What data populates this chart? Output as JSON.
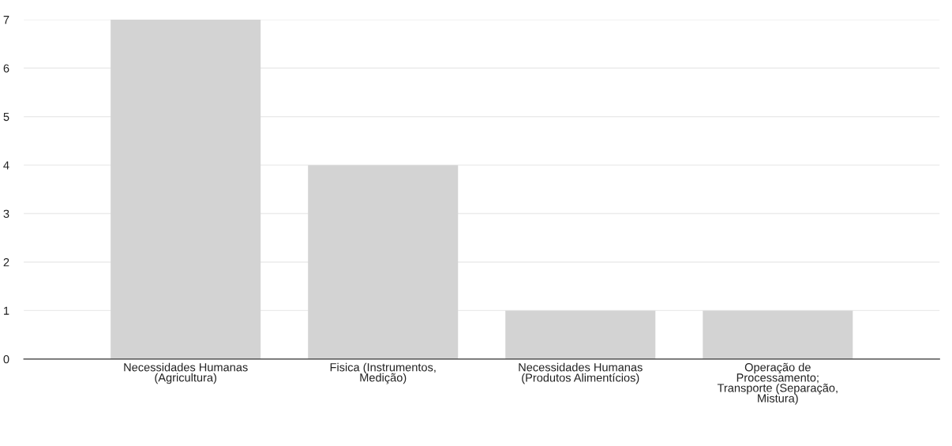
{
  "chart_data": {
    "type": "bar",
    "categories": [
      "Necessidades Humanas\n(Agricultura)",
      "Fisica (Instrumentos,\nMedição)",
      "Necessidades Humanas\n(Produtos Alimentícios)",
      "Operação de\nProcessamento;\nTransporte (Separação,\nMistura)"
    ],
    "values": [
      7,
      4,
      1,
      1
    ],
    "color": "#d3d3d3",
    "ylim": [
      0,
      7
    ],
    "yticks": [
      0,
      1,
      2,
      3,
      4,
      5,
      6,
      7
    ],
    "grid": "y",
    "legend": false
  }
}
